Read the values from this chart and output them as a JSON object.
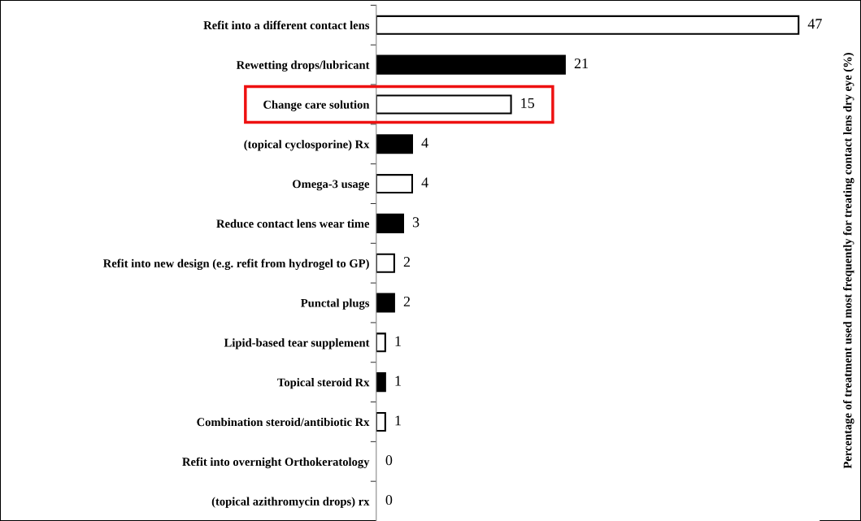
{
  "chart_data": {
    "type": "bar",
    "orientation": "horizontal",
    "ylabel": "Percentage of treatment used most frequently for treating contact lens dry eye (%)",
    "categories": [
      "Refit into a different contact lens",
      "Rewetting drops/lubricant",
      "Change care solution",
      "(topical cyclosporine) Rx",
      "Omega-3 usage",
      "Reduce contact lens wear time",
      "Refit into new design (e.g. refit from hydrogel to GP)",
      "Punctal plugs",
      "Lipid-based tear supplement",
      "Topical steroid Rx",
      "Combination steroid/antibiotic Rx",
      "Refit into overnight Orthokeratology",
      "(topical azithromycin drops) rx"
    ],
    "values": [
      47,
      21,
      15,
      4,
      4,
      3,
      2,
      2,
      1,
      1,
      1,
      0,
      0
    ],
    "colors": [
      "#ffffff",
      "#000000",
      "#ffffff",
      "#000000",
      "#ffffff",
      "#000000",
      "#ffffff",
      "#000000",
      "#ffffff",
      "#000000",
      "#ffffff",
      "#000000",
      "#ffffff"
    ],
    "data_labels": true,
    "tick_labels": "y",
    "grid": false,
    "legend": false
  }
}
